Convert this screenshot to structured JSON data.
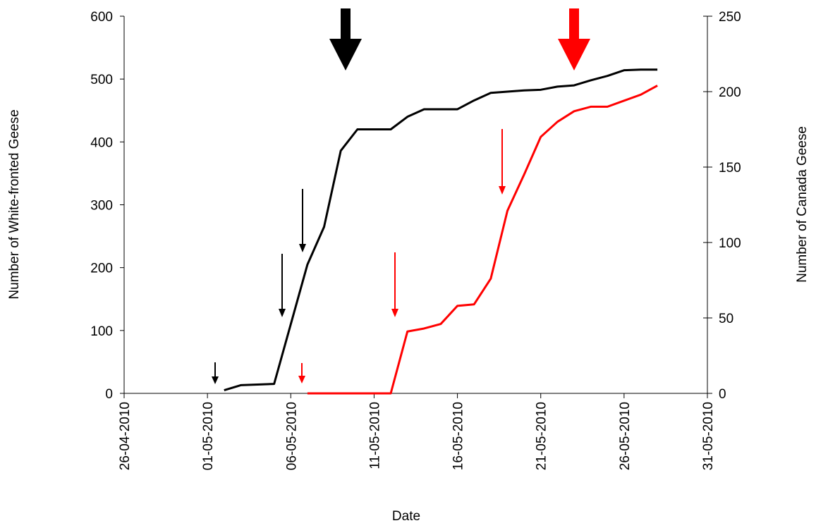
{
  "chart_data": {
    "type": "line",
    "x_label": "Date",
    "y_label": "Number of White-fronted Geese",
    "y2_label": "Number of Canada Geese",
    "xlim": [
      "26-04-2010",
      "31-05-2010"
    ],
    "xticks": [
      "26-04-2010",
      "01-05-2010",
      "06-05-2010",
      "11-05-2010",
      "16-05-2010",
      "21-05-2010",
      "26-05-2010",
      "31-05-2010"
    ],
    "ylim": [
      0,
      600
    ],
    "yticks": [
      0,
      100,
      200,
      300,
      400,
      500,
      600
    ],
    "y2lim": [
      0,
      250
    ],
    "y2ticks": [
      0,
      50,
      100,
      150,
      200,
      250
    ],
    "series": [
      {
        "color": "#000000",
        "x": [
          "02-05-2010",
          "03-05-2010",
          "04-05-2010",
          "05-05-2010",
          "06-05-2010",
          "07-05-2010",
          "08-05-2010",
          "09-05-2010",
          "10-05-2010",
          "11-05-2010",
          "12-05-2010",
          "13-05-2010",
          "14-05-2010",
          "15-05-2010",
          "16-05-2010",
          "17-05-2010",
          "18-05-2010",
          "19-05-2010",
          "20-05-2010",
          "21-05-2010",
          "22-05-2010",
          "23-05-2010",
          "24-05-2010",
          "25-05-2010",
          "26-05-2010",
          "27-05-2010",
          "28-05-2010"
        ],
        "values": [
          5,
          13,
          14,
          15,
          110,
          205,
          265,
          386,
          420,
          420,
          420,
          440,
          452,
          452,
          452,
          466,
          478,
          480,
          482,
          483,
          488,
          490,
          498,
          505,
          514,
          515,
          515
        ]
      },
      {
        "color": "#ff0000",
        "axis": "y2",
        "x": [
          "07-05-2010",
          "08-05-2010",
          "09-05-2010",
          "10-05-2010",
          "11-05-2010",
          "12-05-2010",
          "13-05-2010",
          "14-05-2010",
          "15-05-2010",
          "16-05-2010",
          "17-05-2010",
          "18-05-2010",
          "19-05-2010",
          "20-05-2010",
          "21-05-2010",
          "22-05-2010",
          "23-05-2010",
          "24-05-2010",
          "25-05-2010",
          "26-05-2010",
          "27-05-2010",
          "28-05-2010"
        ],
        "values": [
          0,
          0,
          0,
          0,
          0,
          0,
          41,
          43,
          46,
          58,
          59,
          76,
          121,
          145,
          170,
          180,
          187,
          190,
          190,
          194,
          198,
          204
        ]
      }
    ]
  }
}
